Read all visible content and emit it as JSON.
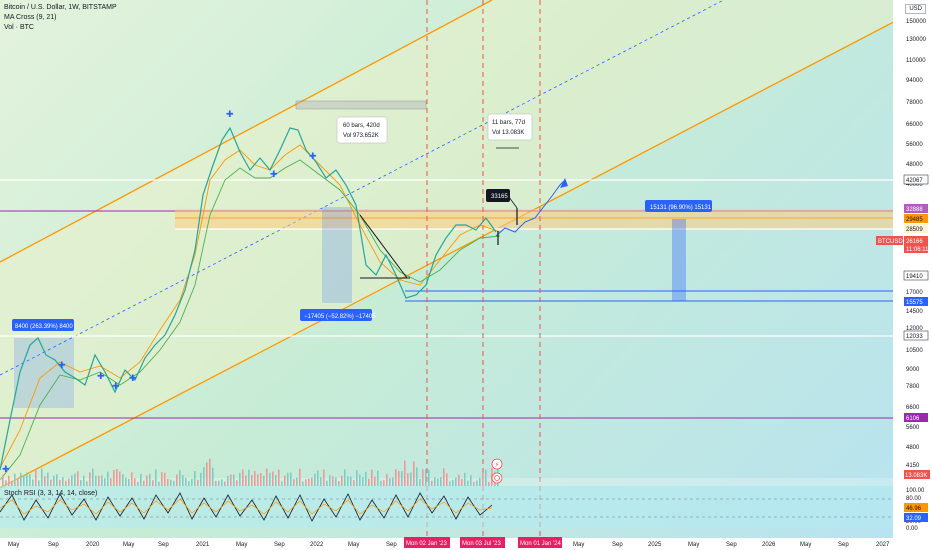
{
  "legend": {
    "symbol": "Bitcoin / U.S. Dollar, 1W, BITSTAMP",
    "ma": "MA Cross (9, 21)",
    "vol": "Vol · BTC",
    "rsi": "Stoch RSI (3, 3, 14, 14, close)"
  },
  "currency": "USD",
  "price_axis": {
    "ticks": [
      "150000",
      "130000",
      "110000",
      "94000",
      "78000",
      "66000",
      "56000",
      "48000",
      "40000",
      "14500",
      "12000",
      "10500",
      "9000",
      "7800",
      "6600",
      "5600",
      "4800",
      "4150"
    ],
    "rsi_ticks": [
      "100.00",
      "80.00",
      "60.00",
      "20.00",
      "0.00"
    ]
  },
  "time_axis": [
    "May",
    "Sep",
    "2020",
    "May",
    "Sep",
    "2021",
    "May",
    "Sep",
    "2022",
    "May",
    "Sep",
    "May",
    "Sep",
    "2025",
    "May",
    "Sep",
    "2026",
    "May",
    "Sep",
    "2027"
  ],
  "date_tags": [
    "Mon 02 Jan '23",
    "Mon 03 Jul '23",
    "Mon 01 Jan '24"
  ],
  "price_tags": {
    "p42067": "42067",
    "p32888": "32888",
    "p29485": "29485",
    "p28509": "28509",
    "p19410": "19410",
    "p17000": "17000",
    "p15575": "15575",
    "p12033": "12033",
    "p6106": "6106",
    "btcusd": "BTCUSD",
    "last": "26166",
    "countdown": "11:06:11",
    "vol": "13.083K",
    "rsi_a": "46.96",
    "rsi_b": "32.09"
  },
  "annotations": {
    "range_top_l1": "60 bars, 420d",
    "range_top_l2": "Vol 973.652K",
    "range_right_l1": "11 bars, 77d",
    "range_right_l2": "Vol 13.083K",
    "price_box": "33165",
    "drop": "−17405 (−52.82%) −17405",
    "rise_left": "8400 (263.39%) 8400",
    "rise_right": "15131 (96.90%) 15131"
  },
  "colors": {
    "up": "#26a69a",
    "down": "#ef5350",
    "orange": "#ff9800",
    "blue": "#2962ff",
    "magenta": "#9c27b0"
  }
}
